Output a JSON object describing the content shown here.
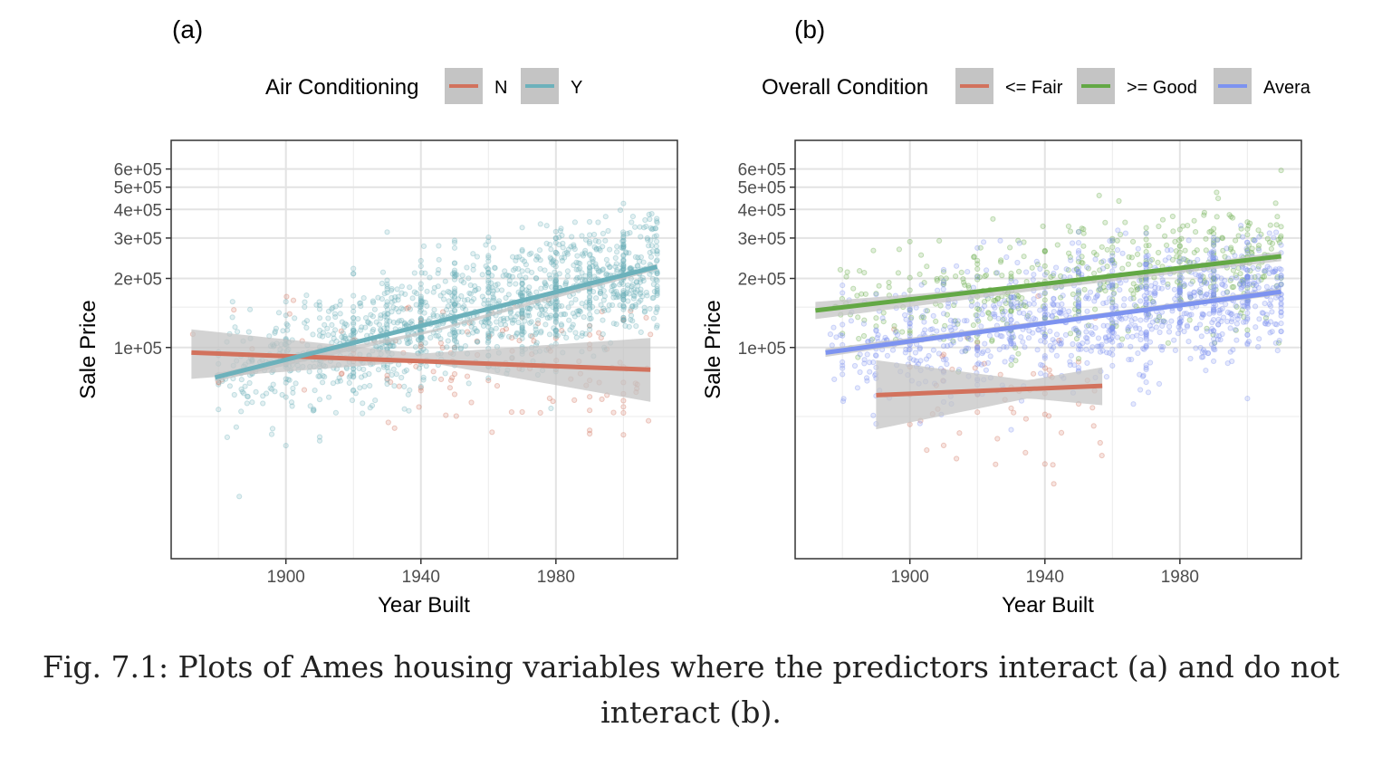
{
  "caption": "Fig. 7.1: Plots of Ames housing variables where the predictors interact (a) and do not interact (b).",
  "colors": {
    "red": "#d2725d",
    "teal": "#6cb1bb",
    "green": "#63a845",
    "blue": "#7d93f0",
    "band": "#c4c4c4",
    "grid": "#ebebeb"
  },
  "chart_data": [
    {
      "type": "scatter",
      "panel_label": "(a)",
      "xlabel": "Year Built",
      "ylabel": "Sale Price",
      "x_scale": "linear",
      "y_scale": "log10",
      "xlim": [
        1866,
        2016
      ],
      "ylim": [
        12000,
        800000
      ],
      "x_ticks": [
        1900,
        1940,
        1980
      ],
      "x_tick_labels": [
        "1900",
        "1940",
        "1980"
      ],
      "y_ticks": [
        100000,
        200000,
        300000,
        400000,
        500000,
        600000
      ],
      "y_tick_labels": [
        "1e+05",
        "2e+05",
        "3e+05",
        "4e+05",
        "5e+05",
        "6e+05"
      ],
      "grid": true,
      "legend": {
        "title": "Air Conditioning",
        "placement": "top",
        "entries": [
          {
            "label": "N",
            "color": "#d2725d"
          },
          {
            "label": "Y",
            "color": "#6cb1bb"
          }
        ]
      },
      "series": [
        {
          "name": "N",
          "color": "#d2725d",
          "n_points": 140,
          "x_range": [
            1872,
            2008
          ],
          "fit": {
            "x": [
              1872,
              2008
            ],
            "y": [
              95000,
              80000
            ]
          },
          "band": {
            "x": [
              1872,
              1940,
              2008
            ],
            "lower": [
              73000,
              87000,
              58000
            ],
            "upper": [
              120000,
              94000,
              110000
            ]
          }
        },
        {
          "name": "Y",
          "color": "#6cb1bb",
          "n_points": 1500,
          "x_range": [
            1879,
            2010
          ],
          "fit": {
            "x": [
              1879,
              2010
            ],
            "y": [
              74000,
              225000
            ]
          },
          "band": {
            "x": [
              1879,
              1945,
              2010
            ],
            "lower": [
              71000,
              118000,
              218000
            ],
            "upper": [
              77000,
              121000,
              232000
            ]
          }
        }
      ]
    },
    {
      "type": "scatter",
      "panel_label": "(b)",
      "xlabel": "Year Built",
      "ylabel": "Sale Price",
      "x_scale": "linear",
      "y_scale": "log10",
      "xlim": [
        1866,
        2016
      ],
      "ylim": [
        12000,
        800000
      ],
      "x_ticks": [
        1900,
        1940,
        1980
      ],
      "x_tick_labels": [
        "1900",
        "1940",
        "1980"
      ],
      "y_ticks": [
        100000,
        200000,
        300000,
        400000,
        500000,
        600000
      ],
      "y_tick_labels": [
        "1e+05",
        "2e+05",
        "3e+05",
        "4e+05",
        "5e+05",
        "6e+05"
      ],
      "grid": true,
      "legend": {
        "title": "Overall Condition",
        "placement": "top",
        "entries": [
          {
            "label": "<= Fair",
            "color": "#d2725d"
          },
          {
            "label": ">= Good",
            "color": "#63a845"
          },
          {
            "label": "Avera",
            "color": "#7d93f0"
          }
        ]
      },
      "series": [
        {
          "name": "<= Fair",
          "color": "#d2725d",
          "n_points": 60,
          "x_range": [
            1890,
            1957
          ],
          "fit": {
            "x": [
              1890,
              1957
            ],
            "y": [
              62000,
              68000
            ]
          },
          "band": {
            "x": [
              1890,
              1935,
              1957
            ],
            "lower": [
              44000,
              60000,
              56000
            ],
            "upper": [
              88000,
              72000,
              82000
            ]
          }
        },
        {
          "name": ">= Good",
          "color": "#63a845",
          "n_points": 500,
          "x_range": [
            1872,
            2010
          ],
          "fit": {
            "x": [
              1872,
              2010
            ],
            "y": [
              145000,
              250000
            ]
          },
          "band": {
            "x": [
              1872,
              1945,
              2010
            ],
            "lower": [
              133000,
              183000,
              238000
            ],
            "upper": [
              158000,
              192000,
              262000
            ]
          }
        },
        {
          "name": "Avera",
          "color": "#7d93f0",
          "n_points": 1100,
          "x_range": [
            1875,
            2010
          ],
          "fit": {
            "x": [
              1875,
              2010
            ],
            "y": [
              95000,
              175000
            ]
          },
          "band": {
            "x": [
              1875,
              1945,
              2010
            ],
            "lower": [
              91000,
              130000,
              169000
            ],
            "upper": [
              99000,
              134000,
              181000
            ]
          }
        }
      ]
    }
  ]
}
